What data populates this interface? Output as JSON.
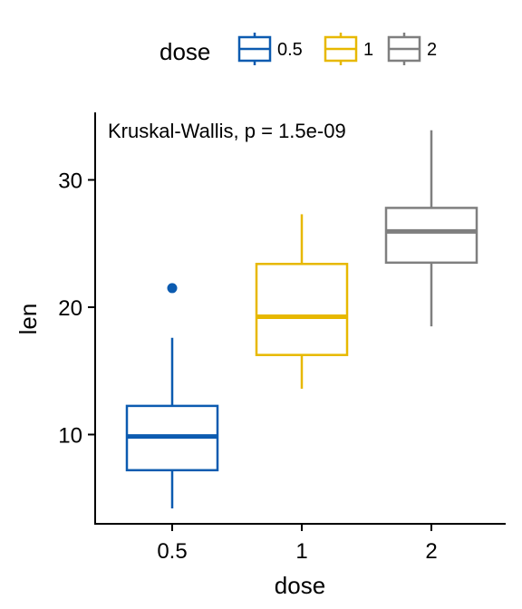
{
  "chart_data": {
    "type": "box",
    "title": "",
    "xlabel": "dose",
    "ylabel": "len",
    "categories": [
      "0.5",
      "1",
      "2"
    ],
    "ylim": [
      3,
      35
    ],
    "yticks": [
      10,
      20,
      30
    ],
    "grid": false,
    "legend": {
      "title": "dose",
      "position": "top",
      "entries": [
        "0.5",
        "1",
        "2"
      ]
    },
    "annotation": "Kruskal-Wallis, p = 1.5e-09",
    "series": [
      {
        "category": "0.5",
        "color": "#0C5BB0",
        "min": 4.2,
        "q1": 7.2,
        "median": 9.85,
        "q3": 12.25,
        "max": 17.6,
        "outliers": [
          21.5
        ]
      },
      {
        "category": "1",
        "color": "#E7B800",
        "min": 13.6,
        "q1": 16.25,
        "median": 19.25,
        "q3": 23.4,
        "max": 27.3,
        "outliers": []
      },
      {
        "category": "2",
        "color": "#7F7F7F",
        "min": 18.5,
        "q1": 23.5,
        "median": 25.95,
        "q3": 27.8,
        "max": 33.9,
        "outliers": []
      }
    ]
  }
}
